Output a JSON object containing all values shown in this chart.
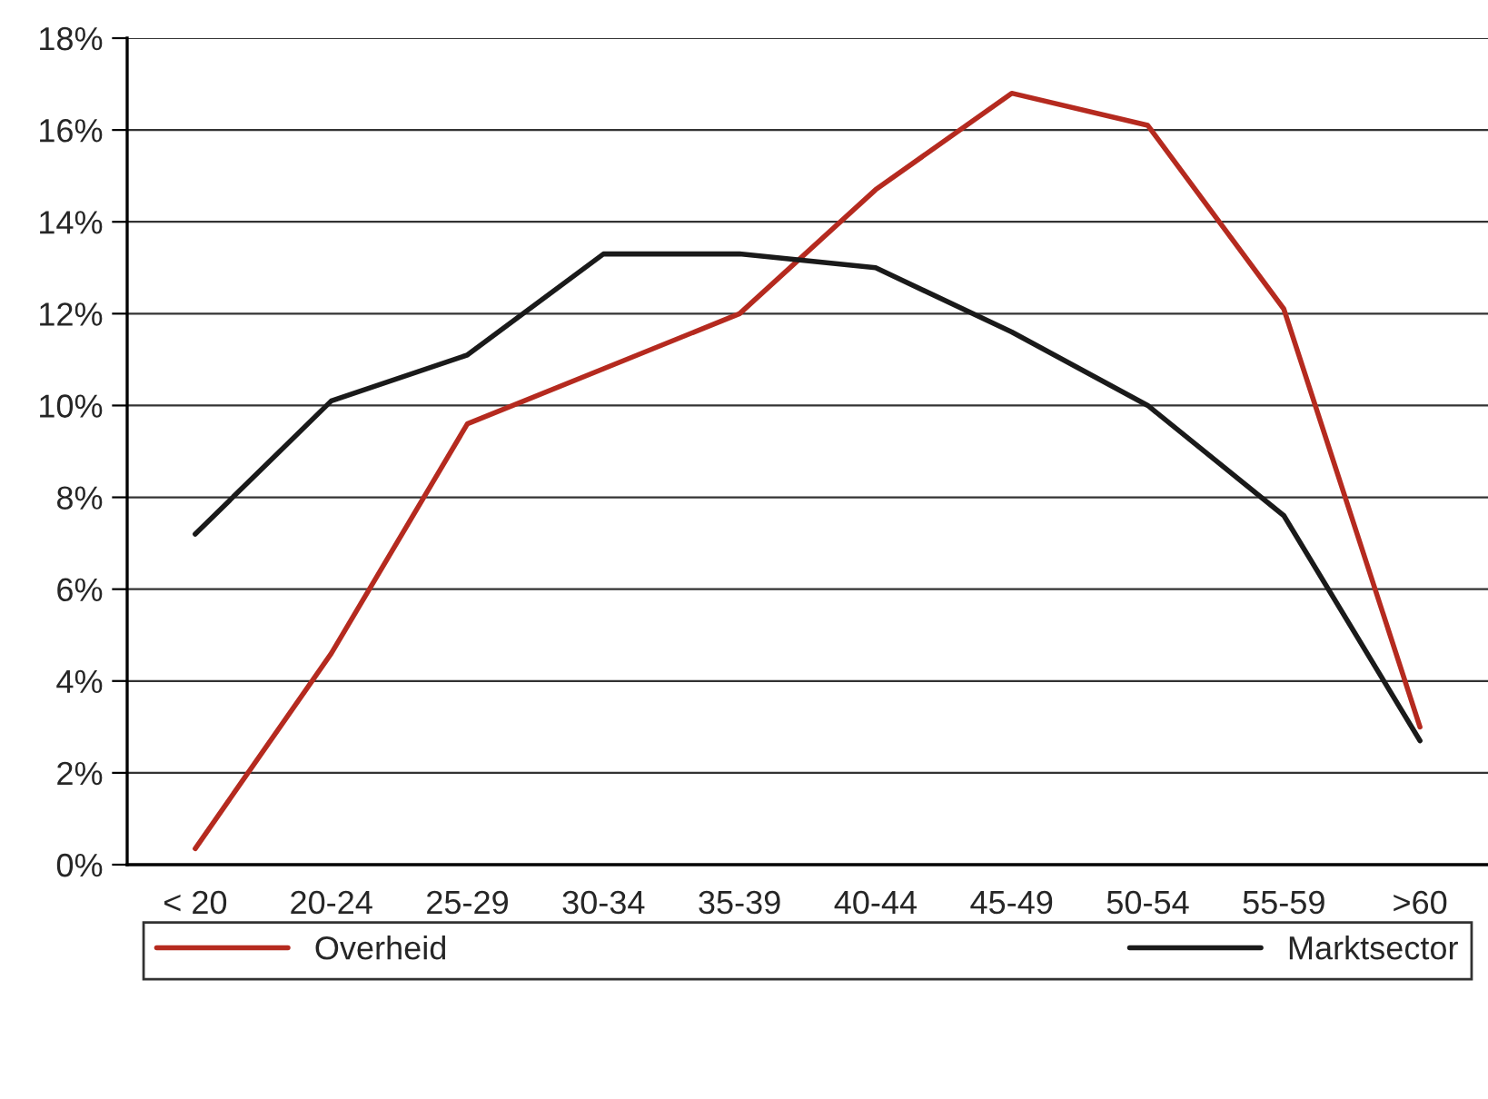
{
  "chart_data": {
    "type": "line",
    "categories": [
      "< 20",
      "20-24",
      "25-29",
      "30-34",
      "35-39",
      "40-44",
      "45-49",
      "50-54",
      "55-59",
      ">60"
    ],
    "series": [
      {
        "name": "Overheid",
        "color": "#b52a1f",
        "values": [
          0.35,
          4.6,
          9.6,
          10.8,
          12.0,
          14.7,
          16.8,
          16.1,
          12.1,
          3.0
        ]
      },
      {
        "name": "Marktsector",
        "color": "#1a1a1a",
        "values": [
          7.2,
          10.1,
          11.1,
          13.3,
          13.3,
          13.0,
          11.6,
          10.0,
          7.6,
          2.7
        ]
      }
    ],
    "ylim": [
      0,
      18
    ],
    "yticks": [
      {
        "value": 0,
        "label": "0%"
      },
      {
        "value": 2,
        "label": "2%"
      },
      {
        "value": 4,
        "label": "4%"
      },
      {
        "value": 6,
        "label": "6%"
      },
      {
        "value": 8,
        "label": "8%"
      },
      {
        "value": 10,
        "label": "10%"
      },
      {
        "value": 12,
        "label": "12%"
      },
      {
        "value": 14,
        "label": "14%"
      },
      {
        "value": 16,
        "label": "16%"
      },
      {
        "value": 18,
        "label": "18%"
      }
    ],
    "grid": "y",
    "legend": "bottom",
    "marker": "none",
    "line_style": "solid"
  }
}
